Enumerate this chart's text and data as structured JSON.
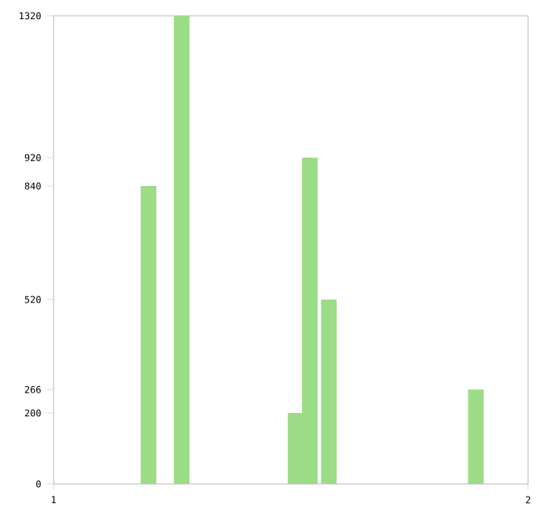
{
  "chart_data": {
    "type": "bar",
    "x": [
      1.2,
      1.27,
      1.51,
      1.54,
      1.58,
      1.89
    ],
    "values": [
      840,
      1320,
      200,
      920,
      520,
      266
    ],
    "color": "#9ddc87",
    "xlim": [
      1,
      2
    ],
    "xticks": [
      1,
      2
    ],
    "ylim": [
      0,
      1320
    ],
    "yticks": [
      0,
      200,
      266,
      520,
      840,
      920,
      1320
    ],
    "grid": false
  }
}
